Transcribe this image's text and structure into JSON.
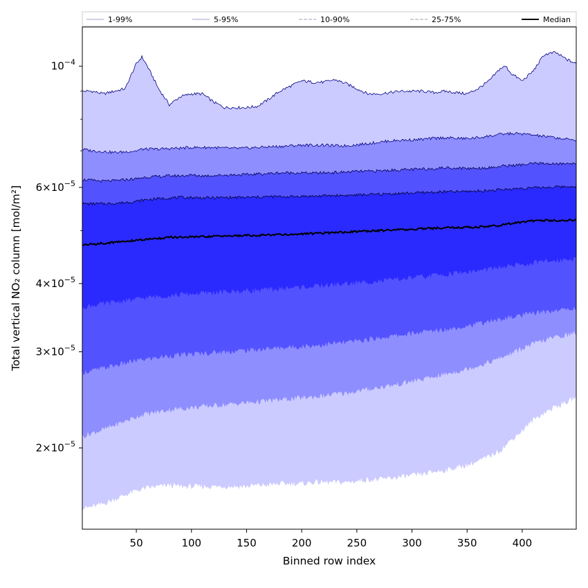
{
  "chart_data": {
    "type": "area",
    "title": "",
    "xlabel": "Binned row index",
    "ylabel": "Total vertical NO₂ column [mol/m²]",
    "xlim": [
      1,
      449
    ],
    "ylim": [
      1.42e-05,
      0.000118
    ],
    "yscale": "log",
    "grid": false,
    "legend_position": "top",
    "x_ticks": [
      50,
      100,
      150,
      200,
      250,
      300,
      350,
      400
    ],
    "x_tick_labels": [
      "50",
      "100",
      "150",
      "200",
      "250",
      "300",
      "350",
      "400"
    ],
    "y_major_ticks": [
      {
        "value": 0.0001,
        "mant": "",
        "exp": "−4",
        "base": "10"
      },
      {
        "value": 6e-05,
        "mant": "6×",
        "exp": "−5",
        "base": "10"
      },
      {
        "value": 4e-05,
        "mant": "4×",
        "exp": "−5",
        "base": "10"
      },
      {
        "value": 3e-05,
        "mant": "3×",
        "exp": "−5",
        "base": "10"
      },
      {
        "value": 2e-05,
        "mant": "2×",
        "exp": "−5",
        "base": "10"
      }
    ],
    "y_minor_ticks": [
      9e-05,
      8e-05,
      7e-05,
      5e-05
    ],
    "x": [
      1,
      10,
      20,
      30,
      40,
      50,
      55,
      60,
      70,
      80,
      90,
      100,
      110,
      120,
      130,
      140,
      150,
      160,
      170,
      180,
      190,
      200,
      210,
      220,
      230,
      240,
      250,
      260,
      270,
      280,
      290,
      300,
      310,
      320,
      330,
      340,
      350,
      360,
      370,
      380,
      385,
      390,
      400,
      410,
      420,
      430,
      440,
      449
    ],
    "bands": [
      {
        "name": "1-99%",
        "color": "#cccbff",
        "line_color": "#000080",
        "line_style": "solid",
        "lower": [
          1.55e-05,
          1.56e-05,
          1.58e-05,
          1.61e-05,
          1.64e-05,
          1.67e-05,
          1.68e-05,
          1.69e-05,
          1.7e-05,
          1.71e-05,
          1.7e-05,
          1.7e-05,
          1.7e-05,
          1.7e-05,
          1.7e-05,
          1.7e-05,
          1.7e-05,
          1.71e-05,
          1.71e-05,
          1.72e-05,
          1.72e-05,
          1.72e-05,
          1.73e-05,
          1.73e-05,
          1.73e-05,
          1.73e-05,
          1.74e-05,
          1.75e-05,
          1.75e-05,
          1.76e-05,
          1.77e-05,
          1.78e-05,
          1.79e-05,
          1.81e-05,
          1.82e-05,
          1.84e-05,
          1.86e-05,
          1.89e-05,
          1.93e-05,
          1.98e-05,
          2.02e-05,
          2.07e-05,
          2.15e-05,
          2.25e-05,
          2.32e-05,
          2.38e-05,
          2.42e-05,
          2.48e-05
        ],
        "upper": [
          9e-05,
          9e-05,
          8.9e-05,
          9e-05,
          9.1e-05,
          0.000101,
          0.000104,
          0.0001,
          9.1e-05,
          8.5e-05,
          8.8e-05,
          8.9e-05,
          8.9e-05,
          8.6e-05,
          8.4e-05,
          8.4e-05,
          8.4e-05,
          8.45e-05,
          8.7e-05,
          9e-05,
          9.2e-05,
          9.4e-05,
          9.35e-05,
          9.35e-05,
          9.45e-05,
          9.3e-05,
          9.1e-05,
          8.9e-05,
          8.9e-05,
          8.95e-05,
          9e-05,
          9e-05,
          9e-05,
          8.95e-05,
          9e-05,
          8.95e-05,
          8.9e-05,
          9.1e-05,
          9.4e-05,
          9.9e-05,
          0.0001,
          9.7e-05,
          9.4e-05,
          9.8e-05,
          0.000105,
          0.000106,
          0.000103,
          0.000101
        ]
      },
      {
        "name": "5-95%",
        "color": "#8f8eff",
        "line_color": "#000080",
        "line_style": "solid",
        "lower": [
          2.1e-05,
          2.13e-05,
          2.16e-05,
          2.2e-05,
          2.24e-05,
          2.28e-05,
          2.3e-05,
          2.31e-05,
          2.33e-05,
          2.35e-05,
          2.36e-05,
          2.37e-05,
          2.38e-05,
          2.39e-05,
          2.4e-05,
          2.41e-05,
          2.42e-05,
          2.43e-05,
          2.44e-05,
          2.45e-05,
          2.46e-05,
          2.47e-05,
          2.48e-05,
          2.49e-05,
          2.51e-05,
          2.52e-05,
          2.54e-05,
          2.56e-05,
          2.58e-05,
          2.6e-05,
          2.62e-05,
          2.65e-05,
          2.67e-05,
          2.7e-05,
          2.73e-05,
          2.76e-05,
          2.79e-05,
          2.83e-05,
          2.87e-05,
          2.92e-05,
          2.95e-05,
          2.98e-05,
          3.04e-05,
          3.1e-05,
          3.15e-05,
          3.19e-05,
          3.22e-05,
          3.25e-05
        ],
        "upper": [
          7.05e-05,
          7e-05,
          6.98e-05,
          6.95e-05,
          6.97e-05,
          7e-05,
          7.05e-05,
          7.05e-05,
          7.05e-05,
          7.07e-05,
          7.08e-05,
          7.1e-05,
          7.1e-05,
          7.1e-05,
          7.08e-05,
          7.07e-05,
          7.08e-05,
          7.1e-05,
          7.12e-05,
          7.13e-05,
          7.15e-05,
          7.17e-05,
          7.17e-05,
          7.17e-05,
          7.15e-05,
          7.15e-05,
          7.18e-05,
          7.22e-05,
          7.26e-05,
          7.3e-05,
          7.32e-05,
          7.33e-05,
          7.35e-05,
          7.38e-05,
          7.4e-05,
          7.38e-05,
          7.37e-05,
          7.4e-05,
          7.45e-05,
          7.5e-05,
          7.52e-05,
          7.53e-05,
          7.52e-05,
          7.48e-05,
          7.44e-05,
          7.4e-05,
          7.35e-05,
          7.33e-05
        ]
      },
      {
        "name": "10-90%",
        "color": "#5352ff",
        "line_color": "#000050",
        "line_style": "dashed",
        "lower": [
          2.75e-05,
          2.77e-05,
          2.8e-05,
          2.83e-05,
          2.86e-05,
          2.89e-05,
          2.9e-05,
          2.91e-05,
          2.93e-05,
          2.95e-05,
          2.96e-05,
          2.97e-05,
          2.98e-05,
          2.99e-05,
          3e-05,
          3.01e-05,
          3.02e-05,
          3.03e-05,
          3.04e-05,
          3.05e-05,
          3.06e-05,
          3.07e-05,
          3.08e-05,
          3.09e-05,
          3.11e-05,
          3.12e-05,
          3.14e-05,
          3.16e-05,
          3.18e-05,
          3.2e-05,
          3.22e-05,
          3.24e-05,
          3.26e-05,
          3.28e-05,
          3.3e-05,
          3.32e-05,
          3.35e-05,
          3.38e-05,
          3.41e-05,
          3.44e-05,
          3.46e-05,
          3.47e-05,
          3.5e-05,
          3.53e-05,
          3.55e-05,
          3.57e-05,
          3.59e-05,
          3.6e-05
        ],
        "upper": [
          6.2e-05,
          6.18e-05,
          6.16e-05,
          6.17e-05,
          6.2e-05,
          6.22e-05,
          6.25e-05,
          6.27e-05,
          6.28e-05,
          6.3e-05,
          6.3e-05,
          6.32e-05,
          6.3e-05,
          6.31e-05,
          6.32e-05,
          6.33e-05,
          6.33e-05,
          6.35e-05,
          6.36e-05,
          6.38e-05,
          6.38e-05,
          6.38e-05,
          6.37e-05,
          6.38e-05,
          6.39e-05,
          6.4e-05,
          6.42e-05,
          6.42e-05,
          6.43e-05,
          6.45e-05,
          6.46e-05,
          6.47e-05,
          6.48e-05,
          6.5e-05,
          6.52e-05,
          6.51e-05,
          6.5e-05,
          6.51e-05,
          6.52e-05,
          6.55e-05,
          6.58e-05,
          6.58e-05,
          6.6e-05,
          6.63e-05,
          6.64e-05,
          6.62e-05,
          6.63e-05,
          6.65e-05
        ]
      },
      {
        "name": "25-75%",
        "color": "#2a2aff",
        "line_color": "#000030",
        "line_style": "dashed",
        "lower": [
          3.62e-05,
          3.65e-05,
          3.67e-05,
          3.7e-05,
          3.72e-05,
          3.74e-05,
          3.76e-05,
          3.77e-05,
          3.79e-05,
          3.8e-05,
          3.82e-05,
          3.83e-05,
          3.84e-05,
          3.85e-05,
          3.86e-05,
          3.87e-05,
          3.88e-05,
          3.89e-05,
          3.9e-05,
          3.91e-05,
          3.93e-05,
          3.94e-05,
          3.95e-05,
          3.97e-05,
          3.98e-05,
          4e-05,
          4.01e-05,
          4.03e-05,
          4.04e-05,
          4.06e-05,
          4.08e-05,
          4.1e-05,
          4.12e-05,
          4.14e-05,
          4.16e-05,
          4.18e-05,
          4.2e-05,
          4.22e-05,
          4.25e-05,
          4.28e-05,
          4.29e-05,
          4.31e-05,
          4.33e-05,
          4.36e-05,
          4.39e-05,
          4.41e-05,
          4.43e-05,
          4.45e-05
        ],
        "upper": [
          5.6e-05,
          5.6e-05,
          5.6e-05,
          5.61e-05,
          5.63e-05,
          5.66e-05,
          5.68e-05,
          5.7e-05,
          5.72e-05,
          5.74e-05,
          5.75e-05,
          5.75e-05,
          5.74e-05,
          5.74e-05,
          5.75e-05,
          5.75e-05,
          5.75e-05,
          5.76e-05,
          5.77e-05,
          5.77e-05,
          5.77e-05,
          5.78e-05,
          5.78e-05,
          5.79e-05,
          5.8e-05,
          5.8e-05,
          5.81e-05,
          5.82e-05,
          5.83e-05,
          5.84e-05,
          5.85e-05,
          5.86e-05,
          5.87e-05,
          5.88e-05,
          5.89e-05,
          5.89e-05,
          5.9e-05,
          5.91e-05,
          5.92e-05,
          5.94e-05,
          5.95e-05,
          5.96e-05,
          5.98e-05,
          5.99e-05,
          6e-05,
          6.01e-05,
          6.02e-05,
          6.03e-05
        ]
      }
    ],
    "series": [
      {
        "name": "Median",
        "color": "#000000",
        "values": [
          4.71e-05,
          4.72e-05,
          4.74e-05,
          4.76e-05,
          4.78e-05,
          4.8e-05,
          4.81e-05,
          4.82e-05,
          4.84e-05,
          4.86e-05,
          4.86e-05,
          4.87e-05,
          4.87e-05,
          4.88e-05,
          4.89e-05,
          4.89e-05,
          4.9e-05,
          4.9e-05,
          4.91e-05,
          4.92e-05,
          4.92e-05,
          4.93e-05,
          4.94e-05,
          4.95e-05,
          4.96e-05,
          4.97e-05,
          4.98e-05,
          4.99e-05,
          5e-05,
          5.01e-05,
          5.02e-05,
          5.03e-05,
          5.04e-05,
          5.05e-05,
          5.06e-05,
          5.07e-05,
          5.07e-05,
          5.08e-05,
          5.09e-05,
          5.11e-05,
          5.13e-05,
          5.16e-05,
          5.18e-05,
          5.21e-05,
          5.22e-05,
          5.22e-05,
          5.22e-05,
          5.23e-05
        ]
      }
    ]
  }
}
